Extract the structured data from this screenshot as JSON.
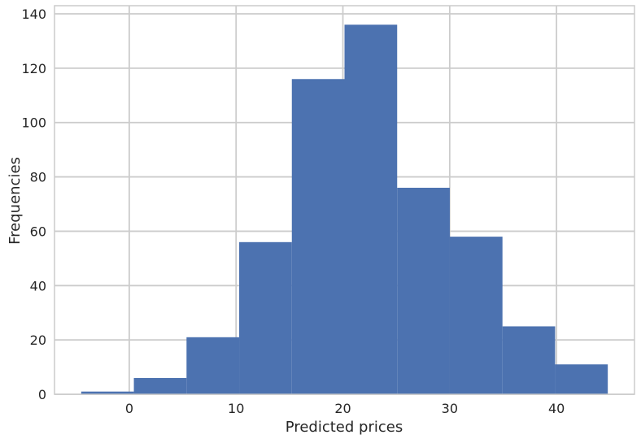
{
  "chart_data": {
    "type": "bar",
    "subtype": "histogram",
    "title": "",
    "xlabel": "Predicted prices",
    "ylabel": "Frequencies",
    "bins": [
      {
        "start": -4.5,
        "end": 0.43,
        "count": 1
      },
      {
        "start": 0.43,
        "end": 5.36,
        "count": 6
      },
      {
        "start": 5.36,
        "end": 10.29,
        "count": 21
      },
      {
        "start": 10.29,
        "end": 15.22,
        "count": 56
      },
      {
        "start": 15.22,
        "end": 20.15,
        "count": 116
      },
      {
        "start": 20.15,
        "end": 25.08,
        "count": 136
      },
      {
        "start": 25.08,
        "end": 30.01,
        "count": 76
      },
      {
        "start": 30.01,
        "end": 34.94,
        "count": 58
      },
      {
        "start": 34.94,
        "end": 39.87,
        "count": 25
      },
      {
        "start": 39.87,
        "end": 44.8,
        "count": 11
      }
    ],
    "xlim": [
      -7.0,
      47.3
    ],
    "ylim": [
      0,
      143
    ],
    "xticks": [
      0,
      10,
      20,
      30,
      40
    ],
    "yticks": [
      0,
      20,
      40,
      60,
      80,
      100,
      120,
      140
    ],
    "grid": true,
    "bar_color": "#4c72b0",
    "grid_color": "#cccccc"
  }
}
